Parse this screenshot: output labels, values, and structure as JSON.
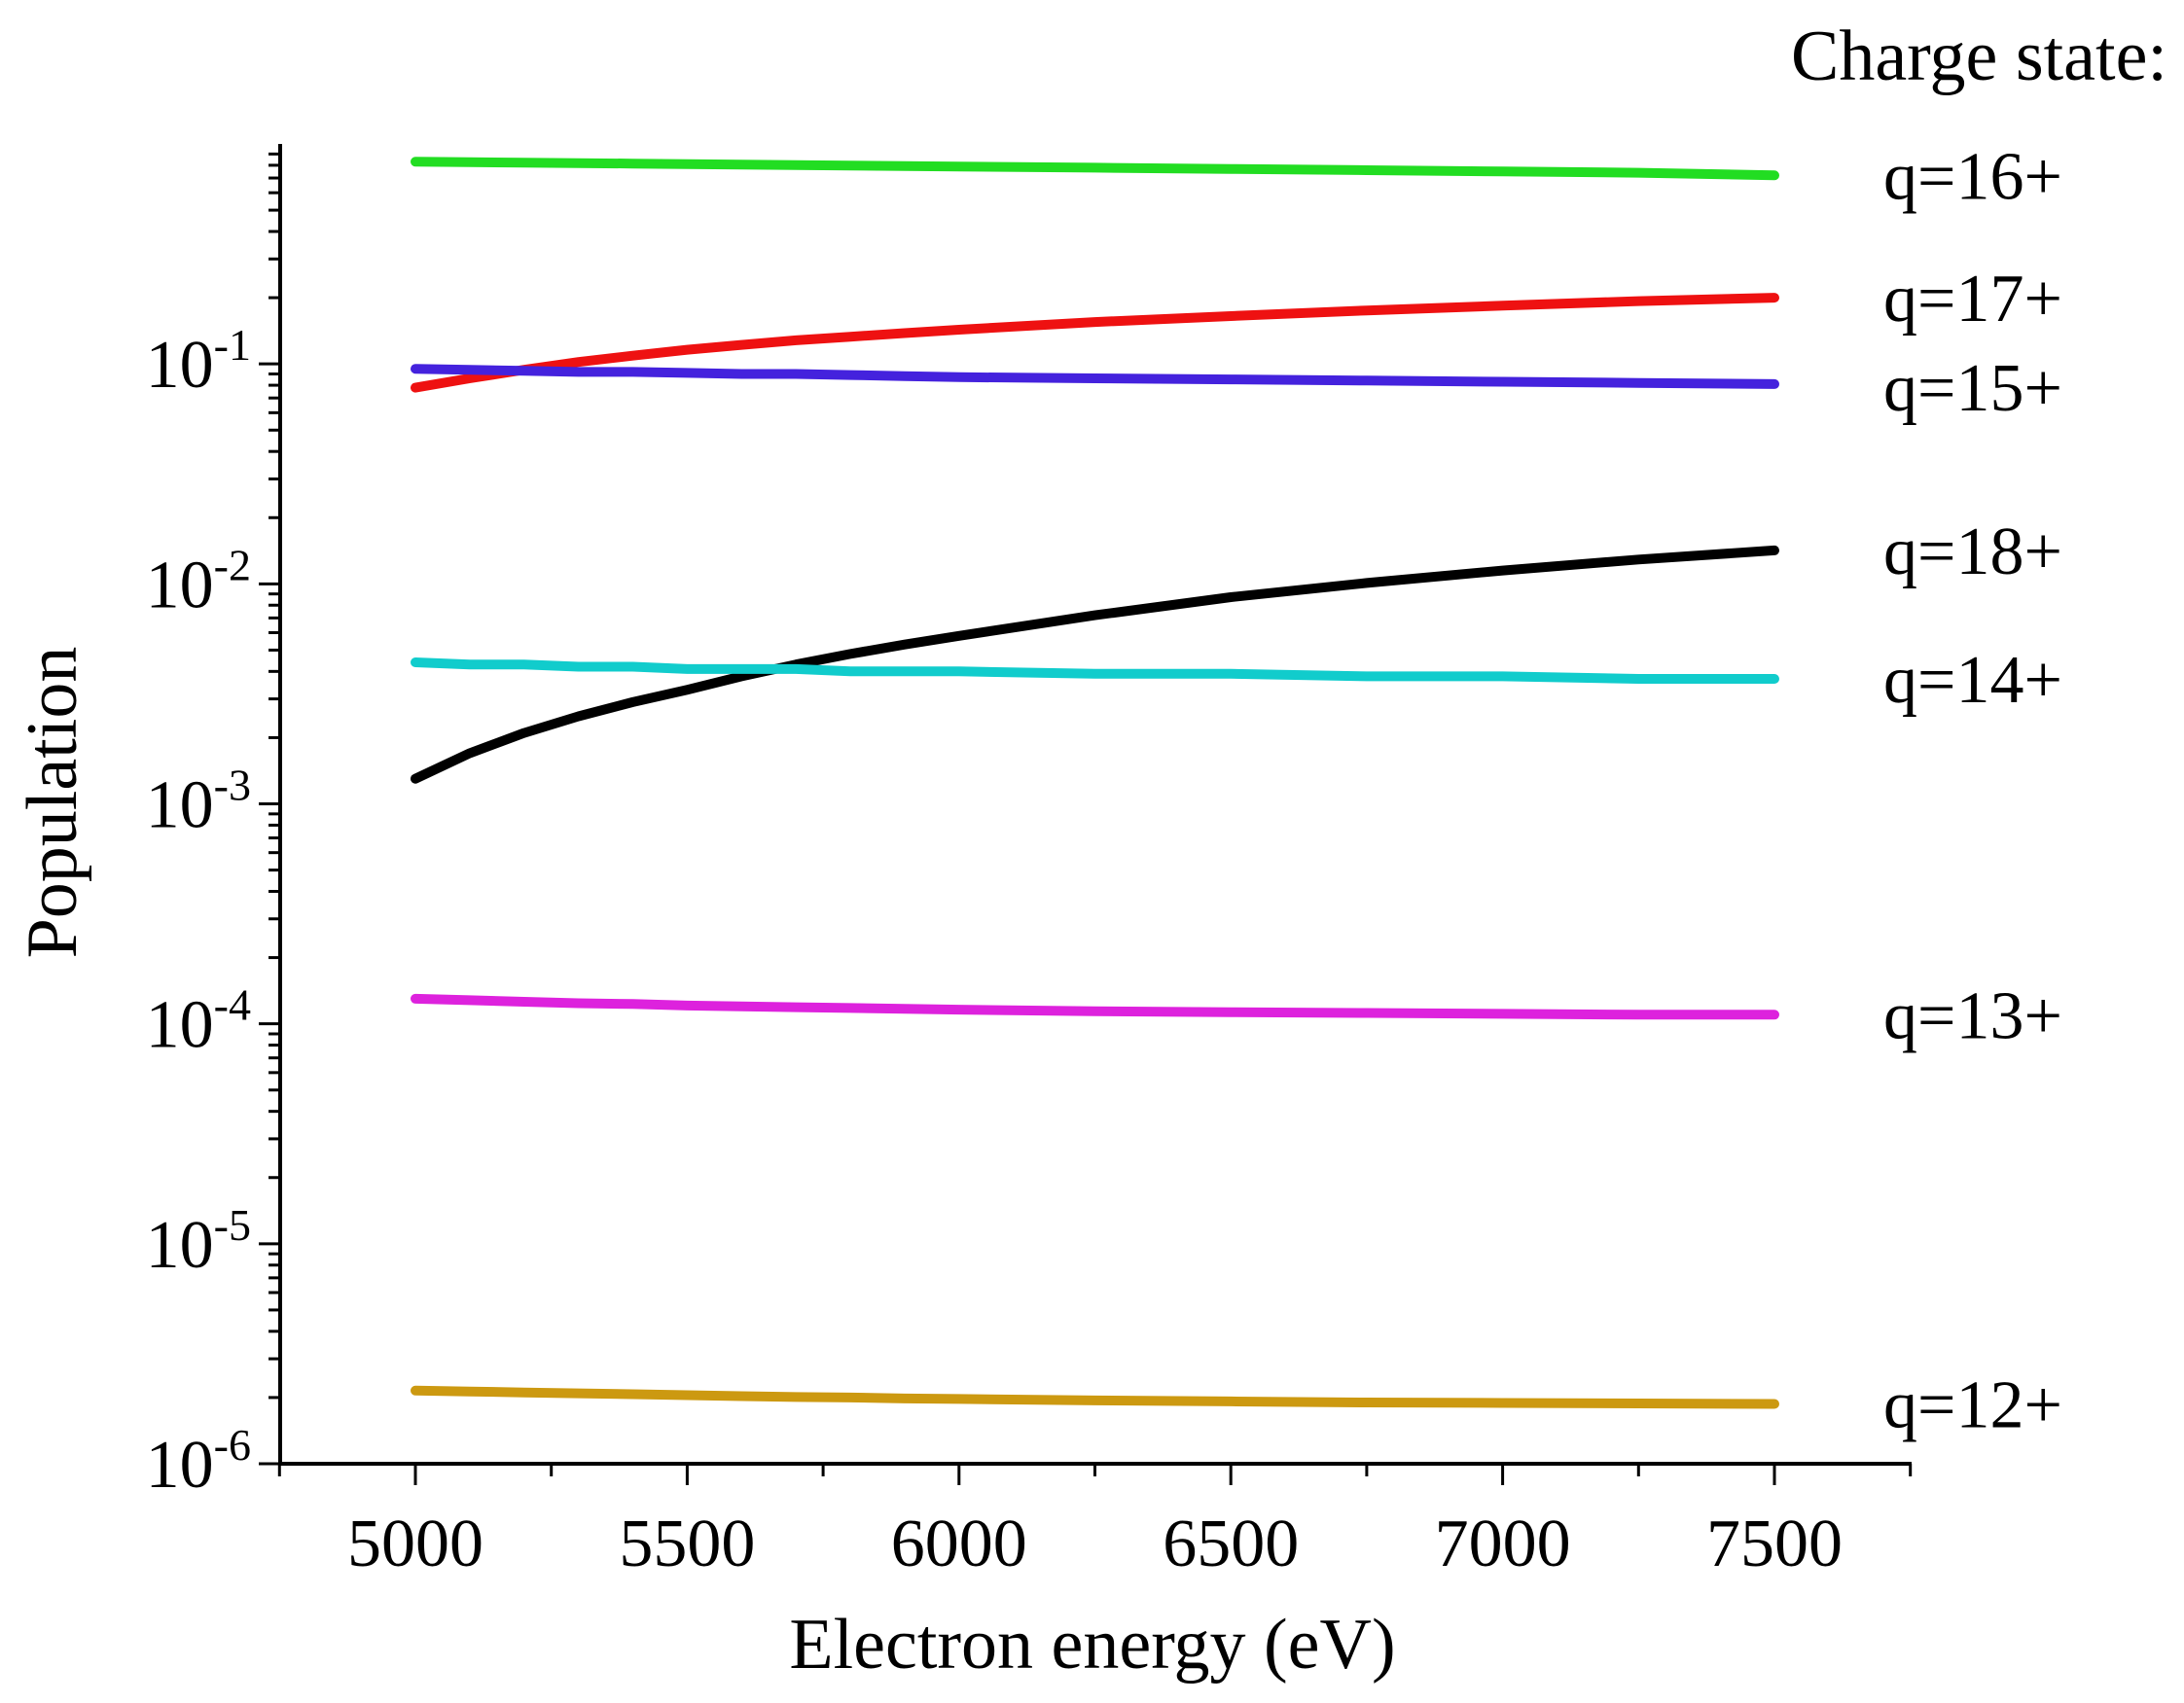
{
  "chart_data": {
    "type": "line",
    "title": "",
    "xlabel": "Electron energy (eV)",
    "ylabel": "Population",
    "xlim": [
      4750,
      7750
    ],
    "ylim": [
      1e-06,
      1
    ],
    "yscale": "log",
    "grid": false,
    "legend_title": "Charge state:",
    "legend_placement": "right, labels at line ends",
    "x_ticks": [
      5000,
      5500,
      6000,
      6500,
      7000,
      7500
    ],
    "x_tick_labels": [
      "5000",
      "5500",
      "6000",
      "6500",
      "7000",
      "7500"
    ],
    "y_ticks": [
      {
        "value": 1e-06,
        "base": "10",
        "exp": "-6"
      },
      {
        "value": 1e-05,
        "base": "10",
        "exp": "-5"
      },
      {
        "value": 0.0001,
        "base": "10",
        "exp": "-4"
      },
      {
        "value": 0.001,
        "base": "10",
        "exp": "-3"
      },
      {
        "value": 0.01,
        "base": "10",
        "exp": "-2"
      },
      {
        "value": 0.1,
        "base": "10",
        "exp": "-1"
      }
    ],
    "x": [
      5000,
      5100,
      5200,
      5300,
      5400,
      5500,
      5600,
      5700,
      5800,
      5900,
      6000,
      6250,
      6500,
      6750,
      7000,
      7250,
      7500
    ],
    "series": [
      {
        "name": "q=16+",
        "color": "#22dd22",
        "values": [
          0.83,
          0.826,
          0.822,
          0.818,
          0.814,
          0.81,
          0.806,
          0.802,
          0.798,
          0.794,
          0.79,
          0.78,
          0.77,
          0.76,
          0.75,
          0.74,
          0.72
        ]
      },
      {
        "name": "q=17+",
        "color": "#ee1111",
        "values": [
          0.078,
          0.086,
          0.094,
          0.102,
          0.109,
          0.116,
          0.122,
          0.128,
          0.133,
          0.138,
          0.143,
          0.155,
          0.165,
          0.175,
          0.184,
          0.193,
          0.2
        ]
      },
      {
        "name": "q=15+",
        "color": "#4422dd",
        "values": [
          0.095,
          0.094,
          0.093,
          0.092,
          0.092,
          0.091,
          0.09,
          0.09,
          0.089,
          0.088,
          0.087,
          0.086,
          0.085,
          0.084,
          0.083,
          0.082,
          0.081
        ]
      },
      {
        "name": "q=18+",
        "color": "#000000",
        "values": [
          0.0013,
          0.0017,
          0.0021,
          0.0025,
          0.0029,
          0.0033,
          0.0038,
          0.0043,
          0.0048,
          0.0053,
          0.0058,
          0.0072,
          0.0087,
          0.0101,
          0.0115,
          0.0129,
          0.0142
        ]
      },
      {
        "name": "q=14+",
        "color": "#11cccc",
        "values": [
          0.0044,
          0.0043,
          0.0043,
          0.0042,
          0.0042,
          0.0041,
          0.0041,
          0.0041,
          0.004,
          0.004,
          0.004,
          0.0039,
          0.0039,
          0.0038,
          0.0038,
          0.0037,
          0.0037
        ]
      },
      {
        "name": "q=13+",
        "color": "#dd22dd",
        "values": [
          0.00013,
          0.000128,
          0.000126,
          0.000124,
          0.000123,
          0.000121,
          0.00012,
          0.000119,
          0.000118,
          0.000117,
          0.000116,
          0.000114,
          0.000113,
          0.000112,
          0.000111,
          0.00011,
          0.00011
        ]
      },
      {
        "name": "q=12+",
        "color": "#cc9911",
        "values": [
          2.15e-06,
          2.13e-06,
          2.11e-06,
          2.09e-06,
          2.07e-06,
          2.05e-06,
          2.03e-06,
          2.01e-06,
          2e-06,
          1.98e-06,
          1.97e-06,
          1.94e-06,
          1.92e-06,
          1.9e-06,
          1.89e-06,
          1.88e-06,
          1.87e-06
        ]
      }
    ]
  }
}
